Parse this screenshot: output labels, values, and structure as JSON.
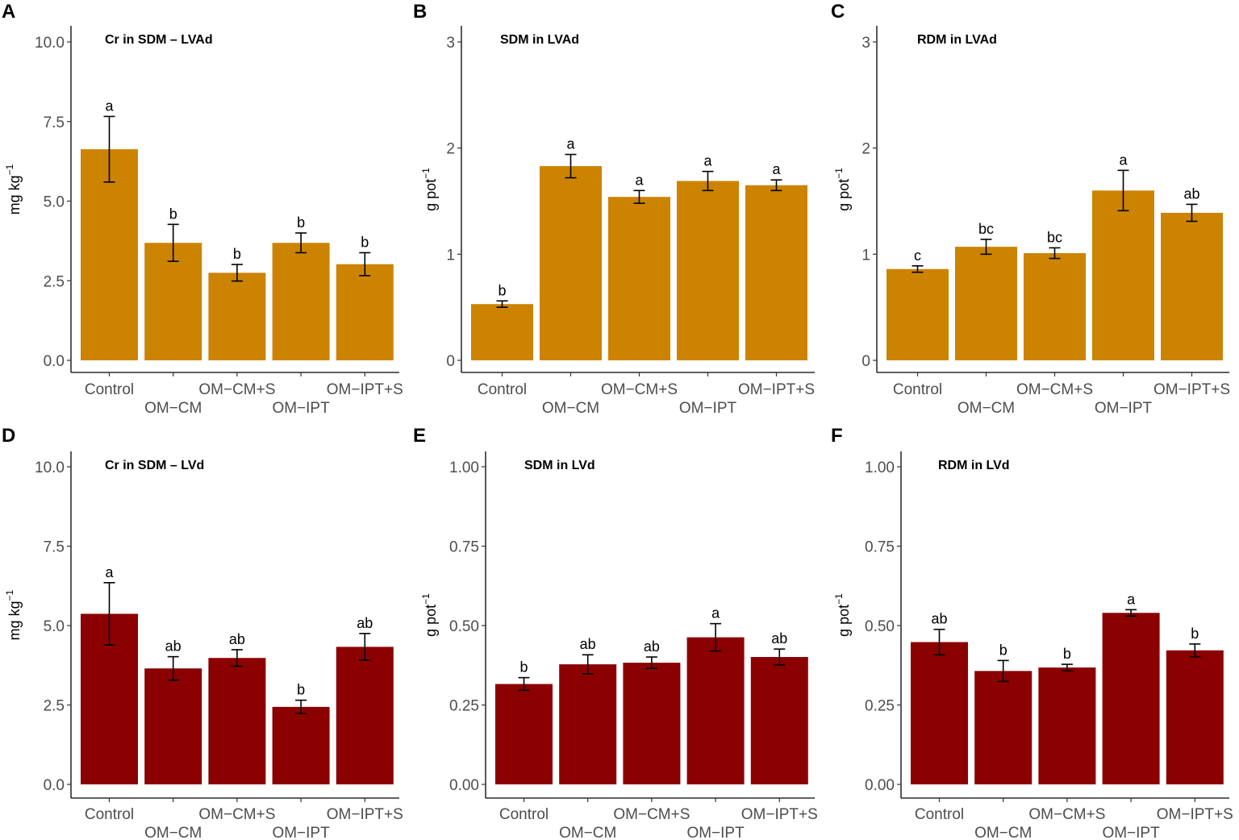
{
  "categories": [
    "Control",
    "OM−CM",
    "OM−CM+S",
    "OM−IPT",
    "OM−IPT+S"
  ],
  "colors": {
    "LVAd": "#CC8400",
    "LVd": "#8B0000"
  },
  "chart_data": [
    {
      "panel": "A",
      "type": "bar",
      "title": "Cr in SDM – LVAd",
      "ylabel": "mg kg",
      "ylabel_sup": "−1",
      "ylim": [
        0,
        10.5
      ],
      "yticks": [
        0,
        2.5,
        5,
        7.5,
        10
      ],
      "ytick_labels": [
        "0.0",
        "2.5",
        "5.0",
        "7.5",
        "10.0"
      ],
      "values": [
        6.63,
        3.69,
        2.75,
        3.69,
        3.02
      ],
      "errors": [
        1.03,
        0.58,
        0.26,
        0.31,
        0.36
      ],
      "letters": [
        "a",
        "b",
        "b",
        "b",
        "b"
      ],
      "color": "#CC8400"
    },
    {
      "panel": "B",
      "type": "bar",
      "title": "SDM in LVAd",
      "ylabel": "g pot",
      "ylabel_sup": "−1",
      "ylim": [
        0,
        3.15
      ],
      "yticks": [
        0,
        1,
        2,
        3
      ],
      "ytick_labels": [
        "0",
        "1",
        "2",
        "3"
      ],
      "values": [
        0.53,
        1.83,
        1.54,
        1.69,
        1.65
      ],
      "errors": [
        0.03,
        0.11,
        0.06,
        0.09,
        0.05
      ],
      "letters": [
        "b",
        "a",
        "a",
        "a",
        "a"
      ],
      "color": "#CC8400"
    },
    {
      "panel": "C",
      "type": "bar",
      "title": "RDM in LVAd",
      "ylabel": "g pot",
      "ylabel_sup": "−1",
      "ylim": [
        0,
        3.15
      ],
      "yticks": [
        0,
        1,
        2,
        3
      ],
      "ytick_labels": [
        "0",
        "1",
        "2",
        "3"
      ],
      "values": [
        0.86,
        1.07,
        1.01,
        1.6,
        1.39
      ],
      "errors": [
        0.03,
        0.07,
        0.05,
        0.19,
        0.08
      ],
      "letters": [
        "c",
        "bc",
        "bc",
        "a",
        "ab"
      ],
      "color": "#CC8400"
    },
    {
      "panel": "D",
      "type": "bar",
      "title": "Cr in SDM – LVd",
      "ylabel": "mg kg",
      "ylabel_sup": "−1",
      "ylim": [
        0,
        10.5
      ],
      "yticks": [
        0,
        2.5,
        5,
        7.5,
        10
      ],
      "ytick_labels": [
        "0.0",
        "2.5",
        "5.0",
        "7.5",
        "10.0"
      ],
      "values": [
        5.37,
        3.65,
        3.98,
        2.44,
        4.33
      ],
      "errors": [
        0.98,
        0.37,
        0.26,
        0.21,
        0.42
      ],
      "letters": [
        "a",
        "ab",
        "ab",
        "b",
        "ab"
      ],
      "color": "#8B0000"
    },
    {
      "panel": "E",
      "type": "bar",
      "title": "SDM in LVd",
      "ylabel": "g pot",
      "ylabel_sup": "−1",
      "ylim": [
        0,
        1.05
      ],
      "yticks": [
        0,
        0.25,
        0.5,
        0.75,
        1
      ],
      "ytick_labels": [
        "0.00",
        "0.25",
        "0.50",
        "0.75",
        "1.00"
      ],
      "values": [
        0.316,
        0.378,
        0.383,
        0.463,
        0.401
      ],
      "errors": [
        0.02,
        0.03,
        0.018,
        0.043,
        0.025
      ],
      "letters": [
        "b",
        "ab",
        "ab",
        "a",
        "ab"
      ],
      "color": "#8B0000"
    },
    {
      "panel": "F",
      "type": "bar",
      "title": "RDM in LVd",
      "ylabel": "g pot",
      "ylabel_sup": "−1",
      "ylim": [
        0,
        1.05
      ],
      "yticks": [
        0,
        0.25,
        0.5,
        0.75,
        1
      ],
      "ytick_labels": [
        "0.00",
        "0.25",
        "0.50",
        "0.75",
        "1.00"
      ],
      "values": [
        0.448,
        0.357,
        0.368,
        0.54,
        0.422
      ],
      "errors": [
        0.04,
        0.033,
        0.01,
        0.01,
        0.02
      ],
      "letters": [
        "ab",
        "b",
        "b",
        "a",
        "b"
      ],
      "color": "#8B0000"
    }
  ]
}
